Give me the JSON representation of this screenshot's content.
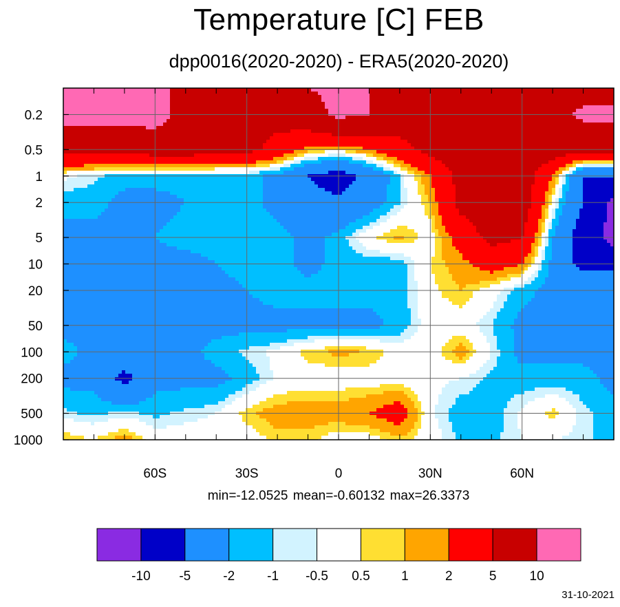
{
  "title": "Temperature [C] FEB",
  "subtitle": "dpp0016(2020-2020) - ERA5(2020-2020)",
  "stats": "min=-12.0525   mean=-0.60132   max=26.3373",
  "date": "31-10-2021",
  "chart_data": {
    "type": "heatmap",
    "title": "Temperature [C] FEB",
    "subtitle": "dpp0016(2020-2020) - ERA5(2020-2020)",
    "x_ticks": [
      {
        "value": -60,
        "label": "60S"
      },
      {
        "value": -30,
        "label": "30S"
      },
      {
        "value": 0,
        "label": "0"
      },
      {
        "value": 30,
        "label": "30N"
      },
      {
        "value": 60,
        "label": "60N"
      }
    ],
    "xlim": [
      -90,
      90
    ],
    "y_scale": "log",
    "y_reversed": true,
    "y_ticks": [
      0.2,
      0.5,
      1,
      2,
      5,
      10,
      20,
      50,
      100,
      200,
      500,
      1000
    ],
    "ylim": [
      0.1,
      1000
    ],
    "grid": true,
    "stats": {
      "min": -12.0525,
      "mean": -0.60132,
      "max": 26.3373
    },
    "levels": [
      -10,
      -5,
      -2,
      -1,
      -0.5,
      0.5,
      1,
      2,
      5,
      10
    ],
    "level_labels": [
      "-10",
      "-5",
      "-2",
      "-1",
      "-0.5",
      "0.5",
      "1",
      "2",
      "5",
      "10"
    ],
    "colors": [
      "#8a2be2",
      "#0000c8",
      "#1e90ff",
      "#00bfff",
      "#d2f3ff",
      "#ffffff",
      "#ffdf32",
      "#ffa500",
      "#ff0000",
      "#c80000",
      "#ff69b4"
    ],
    "lat": [
      -90,
      -80,
      -70,
      -60,
      -50,
      -40,
      -30,
      -20,
      -10,
      0,
      10,
      20,
      30,
      40,
      50,
      60,
      70,
      80,
      90
    ],
    "pressure": [
      0.1,
      0.2,
      0.5,
      1,
      2,
      5,
      10,
      20,
      50,
      100,
      200,
      500,
      1000
    ],
    "values": [
      [
        12,
        12,
        12,
        12,
        8,
        7,
        7,
        8,
        10,
        11,
        10,
        8,
        6,
        6,
        6,
        6,
        8,
        8,
        8
      ],
      [
        12,
        12,
        12,
        12,
        8,
        7,
        6,
        6,
        8,
        11,
        10,
        7,
        7,
        6,
        6,
        6,
        8,
        11,
        11
      ],
      [
        6,
        6,
        6,
        7,
        7,
        6,
        6,
        4,
        1.5,
        0.8,
        2,
        4,
        6,
        7,
        7,
        7,
        7,
        6,
        6
      ],
      [
        -0.3,
        -0.8,
        -1.5,
        -1.5,
        -1.5,
        -1.5,
        -1.5,
        -2.5,
        -5,
        -6.5,
        -4,
        -1,
        2,
        6,
        7,
        7,
        2,
        -5,
        -5
      ],
      [
        -1.5,
        -1.5,
        -2.5,
        -2.5,
        -2,
        -1.5,
        -1.5,
        -2.5,
        -4,
        -4.5,
        -3,
        -1,
        1,
        6,
        7,
        7,
        0,
        -5,
        -11
      ],
      [
        -2.5,
        -2.5,
        -2.5,
        -2,
        -1.5,
        -1.5,
        -1.5,
        -1.5,
        -2.5,
        -1.5,
        0.3,
        1.2,
        0,
        3,
        6,
        5,
        -2,
        -7,
        -12
      ],
      [
        -2.5,
        -2.5,
        -2.5,
        -2.5,
        -2.5,
        -2,
        -1.5,
        -1.5,
        -2.5,
        -1.5,
        -1.5,
        -1.5,
        0.5,
        1.5,
        3,
        2,
        -2.5,
        -6,
        -6
      ],
      [
        -2.5,
        -2.5,
        -2.5,
        -2.5,
        -2.5,
        -2.5,
        -2,
        -1.5,
        -1.5,
        -1.5,
        -1.5,
        -1.5,
        0.3,
        1,
        0,
        -1.5,
        -2.5,
        -2.5,
        -2.5
      ],
      [
        -2.5,
        -2.5,
        -2.5,
        -2.5,
        -2.5,
        -2.5,
        -2.5,
        -2.5,
        -2.5,
        -2.5,
        -2.5,
        -1.5,
        0,
        0,
        -1,
        -2.5,
        -2.5,
        -2.5,
        -2.5
      ],
      [
        -1.5,
        -2.5,
        -2.5,
        -2.5,
        -2.5,
        -1.5,
        -0.8,
        -0.3,
        0.8,
        1.2,
        1,
        0,
        0,
        1.5,
        -0.5,
        -2.5,
        -2.5,
        -2.5,
        -2.5
      ],
      [
        -2.5,
        -2.5,
        -6,
        -2.5,
        -2.5,
        -2.5,
        -1.5,
        -0.3,
        0,
        0,
        0,
        0,
        -0.3,
        -0.5,
        -1.2,
        -1.5,
        -1.5,
        -1.5,
        -2.5
      ],
      [
        -0.8,
        -1.2,
        -0.8,
        -1.2,
        -0.8,
        -0.5,
        0.8,
        1.5,
        1.5,
        1.5,
        2,
        3,
        -0.3,
        -1.5,
        -1.5,
        -0.3,
        0.8,
        -0.8,
        -1.5
      ],
      [
        1,
        0.5,
        1.5,
        0,
        0,
        0,
        0,
        0.7,
        0.7,
        0,
        0,
        0.8,
        0,
        -1.2,
        -1.2,
        -0.5,
        -0.5,
        -0.8,
        -1.5
      ]
    ]
  }
}
